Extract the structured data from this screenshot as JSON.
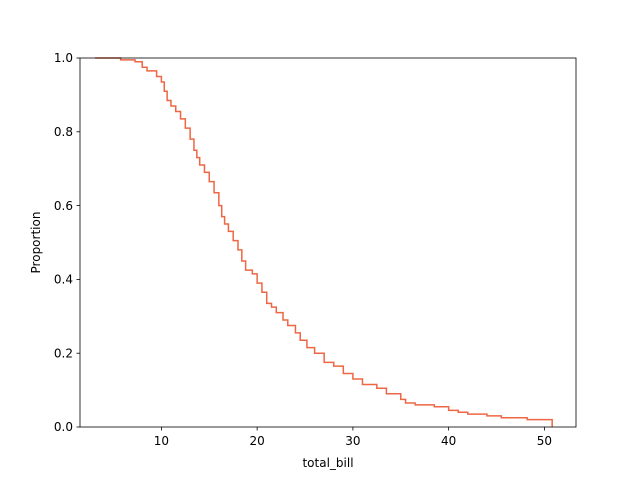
{
  "chart_data": {
    "type": "line",
    "subtype": "complementary-ecdf-step",
    "title": "",
    "xlabel": "total_bill",
    "ylabel": "Proportion",
    "xlim": [
      1.5,
      53.3
    ],
    "ylim": [
      0,
      1.0
    ],
    "x_ticks": [
      10,
      20,
      30,
      40,
      50
    ],
    "y_ticks": [
      0.0,
      0.2,
      0.4,
      0.6,
      0.8,
      1.0
    ],
    "x_tick_labels": [
      "10",
      "20",
      "30",
      "40",
      "50"
    ],
    "y_tick_labels": [
      "0.0",
      "0.2",
      "0.4",
      "0.6",
      "0.8",
      "1.0"
    ],
    "grid": false,
    "legend": "none",
    "series": [
      {
        "color": "#ee6644",
        "x": [
          3.07,
          5.75,
          7.25,
          8.0,
          8.5,
          9.5,
          10.0,
          10.3,
          10.6,
          11.0,
          11.5,
          12.0,
          12.5,
          13.0,
          13.4,
          13.7,
          14.0,
          14.5,
          15.0,
          15.5,
          16.0,
          16.3,
          16.6,
          17.0,
          17.5,
          18.0,
          18.4,
          18.8,
          19.5,
          20.0,
          20.5,
          21.0,
          21.5,
          22.0,
          22.7,
          23.2,
          24.0,
          24.5,
          25.2,
          26.0,
          27.0,
          28.0,
          29.0,
          30.0,
          31.0,
          32.5,
          33.5,
          35.0,
          35.5,
          36.5,
          38.5,
          40.0,
          41.0,
          42.0,
          44.0,
          45.5,
          48.2,
          50.81
        ],
        "y": [
          1.0,
          0.995,
          0.99,
          0.975,
          0.965,
          0.95,
          0.935,
          0.91,
          0.885,
          0.87,
          0.855,
          0.835,
          0.81,
          0.78,
          0.75,
          0.73,
          0.71,
          0.69,
          0.665,
          0.635,
          0.6,
          0.57,
          0.55,
          0.53,
          0.505,
          0.48,
          0.45,
          0.425,
          0.415,
          0.39,
          0.365,
          0.335,
          0.325,
          0.31,
          0.29,
          0.275,
          0.255,
          0.235,
          0.215,
          0.2,
          0.175,
          0.165,
          0.145,
          0.13,
          0.115,
          0.105,
          0.09,
          0.075,
          0.065,
          0.06,
          0.055,
          0.045,
          0.04,
          0.035,
          0.03,
          0.025,
          0.02,
          0.005
        ]
      }
    ]
  }
}
